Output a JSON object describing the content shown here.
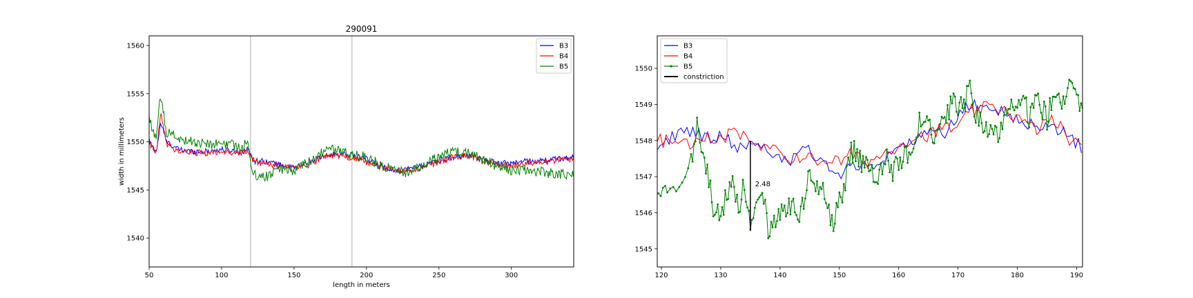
{
  "chart_data": [
    {
      "type": "line",
      "title": "290091",
      "xlabel": "length in meters",
      "ylabel": "width in millimeters",
      "xlim": [
        50,
        343
      ],
      "ylim": [
        1537,
        1561
      ],
      "xticks": [
        50,
        100,
        150,
        200,
        250,
        300
      ],
      "yticks": [
        1540,
        1545,
        1550,
        1555,
        1560
      ],
      "vlines": [
        120,
        190
      ],
      "legend_position": "upper right",
      "grid": false,
      "colors": {
        "B3": "#0000ff",
        "B4": "#ff0000",
        "B5": "#008000",
        "vline": "#9a9a9a"
      },
      "series_profile": {
        "x": [
          50,
          52,
          55,
          58,
          62,
          70,
          80,
          90,
          100,
          110,
          115,
          118,
          120,
          123,
          130,
          140,
          150,
          160,
          170,
          180,
          190,
          200,
          210,
          220,
          230,
          240,
          250,
          260,
          270,
          280,
          290,
          300,
          310,
          320,
          330,
          343
        ]
      },
      "series": [
        {
          "name": "B3",
          "noise": 0.3,
          "values": [
            1550.2,
            1549.5,
            1549.0,
            1552.0,
            1550.0,
            1549.2,
            1549.0,
            1549.0,
            1549.2,
            1549.0,
            1549.0,
            1549.3,
            1548.6,
            1548.0,
            1548.0,
            1547.6,
            1547.3,
            1547.8,
            1548.4,
            1548.8,
            1548.6,
            1548.2,
            1547.5,
            1547.0,
            1547.2,
            1547.6,
            1548.0,
            1548.4,
            1548.6,
            1548.2,
            1547.8,
            1547.8,
            1548.0,
            1548.0,
            1548.2,
            1548.4
          ]
        },
        {
          "name": "B4",
          "noise": 0.35,
          "values": [
            1550.0,
            1549.2,
            1548.8,
            1553.0,
            1549.8,
            1549.0,
            1548.9,
            1548.8,
            1549.0,
            1548.8,
            1548.9,
            1549.1,
            1548.4,
            1547.9,
            1547.8,
            1547.5,
            1547.3,
            1547.6,
            1548.5,
            1548.6,
            1548.3,
            1547.9,
            1547.4,
            1547.0,
            1547.0,
            1547.4,
            1547.9,
            1548.4,
            1548.6,
            1548.0,
            1547.6,
            1547.5,
            1547.8,
            1547.8,
            1548.0,
            1548.2
          ]
        },
        {
          "name": "B5",
          "noise": 0.55,
          "values": [
            1552.8,
            1551.0,
            1550.5,
            1555.0,
            1551.0,
            1550.4,
            1550.0,
            1549.8,
            1549.8,
            1549.6,
            1549.6,
            1550.0,
            1547.5,
            1546.5,
            1546.3,
            1547.2,
            1547.0,
            1547.8,
            1549.0,
            1549.2,
            1548.6,
            1548.4,
            1547.6,
            1547.0,
            1546.8,
            1547.6,
            1548.4,
            1549.0,
            1548.8,
            1548.2,
            1547.5,
            1547.0,
            1547.0,
            1546.9,
            1546.7,
            1546.5
          ]
        }
      ]
    },
    {
      "type": "line",
      "title": "",
      "xlabel": "",
      "ylabel": "",
      "xlim": [
        119.3,
        191
      ],
      "ylim": [
        1544.5,
        1550.9
      ],
      "xticks": [
        120,
        130,
        140,
        150,
        160,
        170,
        180,
        190
      ],
      "yticks": [
        1545,
        1546,
        1547,
        1548,
        1549,
        1550
      ],
      "legend_position": "upper left",
      "grid": false,
      "colors": {
        "B3": "#0000ff",
        "B4": "#ff0000",
        "B5": "#008000",
        "constriction": "#000000"
      },
      "annotation": {
        "text": "2.48",
        "x": 135.8,
        "y": 1546.8
      },
      "constriction": {
        "x": 135,
        "y_from": 1545.5,
        "y_to": 1548.0
      },
      "series": [
        {
          "name": "B3",
          "noise": 0.18,
          "x": [
            119.5,
            122,
            125,
            128,
            130,
            133,
            135,
            138,
            140,
            142,
            144,
            146,
            148,
            150,
            152,
            155,
            158,
            160,
            163,
            166,
            168,
            170,
            172,
            175,
            178,
            180,
            183,
            186,
            188,
            191
          ],
          "values": [
            1547.8,
            1548.1,
            1548.3,
            1548.0,
            1548.2,
            1547.8,
            1548.0,
            1547.8,
            1547.5,
            1547.4,
            1547.9,
            1547.5,
            1547.3,
            1547.0,
            1547.4,
            1547.3,
            1547.6,
            1547.8,
            1548.1,
            1548.3,
            1548.2,
            1548.7,
            1549.0,
            1548.9,
            1548.8,
            1548.6,
            1548.4,
            1548.3,
            1548.2,
            1547.8
          ]
        },
        {
          "name": "B4",
          "noise": 0.2,
          "x": [
            119.5,
            122,
            125,
            128,
            130,
            133,
            135,
            138,
            140,
            142,
            144,
            146,
            148,
            150,
            152,
            155,
            158,
            160,
            163,
            166,
            168,
            170,
            172,
            175,
            178,
            180,
            183,
            186,
            188,
            191
          ],
          "values": [
            1548.0,
            1548.0,
            1547.9,
            1548.1,
            1548.0,
            1548.3,
            1547.8,
            1547.8,
            1547.6,
            1547.5,
            1547.6,
            1547.4,
            1547.5,
            1547.4,
            1547.6,
            1547.4,
            1547.7,
            1547.9,
            1548.1,
            1548.2,
            1548.4,
            1548.3,
            1548.8,
            1548.9,
            1548.9,
            1548.6,
            1548.3,
            1548.6,
            1548.2,
            1547.7
          ]
        },
        {
          "name": "B5",
          "noise": 0.35,
          "markers": true,
          "x": [
            119.5,
            121,
            123,
            125,
            126,
            127,
            128,
            129,
            130,
            131,
            132,
            133,
            134,
            135,
            136,
            137,
            138,
            139,
            140,
            141,
            142,
            143,
            144,
            145,
            146,
            147,
            148,
            149,
            150,
            151,
            152,
            153,
            154,
            155,
            156,
            157,
            158,
            159,
            160,
            161,
            162,
            163,
            164,
            165,
            166,
            167,
            168,
            169,
            170,
            171,
            172,
            173,
            174,
            175,
            176,
            177,
            178,
            179,
            180,
            181,
            182,
            183,
            184,
            185,
            186,
            187,
            188,
            189,
            190,
            191
          ],
          "values": [
            1546.5,
            1546.9,
            1546.8,
            1547.3,
            1548.4,
            1547.8,
            1546.8,
            1546.0,
            1545.8,
            1546.5,
            1546.8,
            1546.2,
            1546.9,
            1545.6,
            1546.6,
            1546.8,
            1545.6,
            1545.8,
            1546.0,
            1546.1,
            1546.2,
            1546.0,
            1546.3,
            1547.2,
            1546.9,
            1546.6,
            1546.2,
            1545.8,
            1546.4,
            1546.7,
            1547.8,
            1547.5,
            1547.4,
            1547.2,
            1547.0,
            1547.2,
            1547.6,
            1547.2,
            1547.3,
            1547.8,
            1547.5,
            1548.3,
            1548.7,
            1548.5,
            1548.2,
            1548.3,
            1548.5,
            1549.2,
            1548.8,
            1549.0,
            1549.6,
            1548.8,
            1548.6,
            1548.3,
            1548.4,
            1548.2,
            1548.6,
            1549.0,
            1548.7,
            1549.2,
            1548.6,
            1549.3,
            1548.9,
            1548.6,
            1549.2,
            1549.4,
            1549.0,
            1549.8,
            1549.2,
            1548.9
          ]
        }
      ]
    }
  ]
}
